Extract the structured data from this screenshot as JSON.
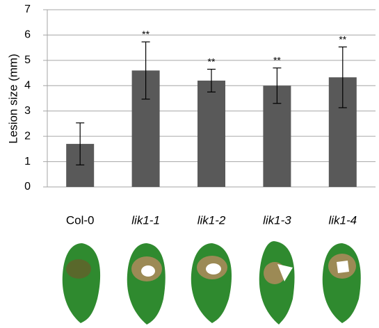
{
  "chart_data": {
    "type": "bar",
    "y_label": "Lesion size (mm)",
    "categories": [
      "Col-0",
      "lik1-1",
      "lik1-2",
      "lik1-3",
      "lik1-4"
    ],
    "values": [
      1.7,
      4.6,
      4.2,
      4.0,
      4.33
    ],
    "errors": [
      0.83,
      1.13,
      0.45,
      0.7,
      1.2
    ],
    "annotations": [
      null,
      "**",
      "**",
      "**",
      "**"
    ],
    "color": "#595959",
    "ylim": [
      0,
      7
    ],
    "yticks": [
      0,
      1,
      2,
      3,
      4,
      5,
      6,
      7
    ],
    "grid": true
  }
}
